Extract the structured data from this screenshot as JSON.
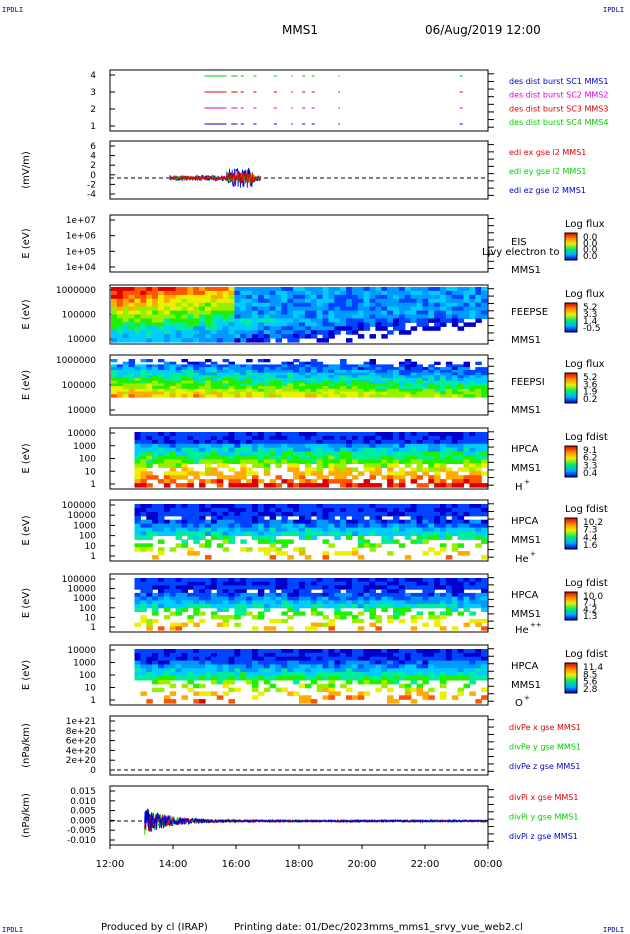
{
  "corner_label": "IPDLI",
  "header": {
    "spacecraft": "MMS1",
    "date": "06/Aug/2019 12:00"
  },
  "footer": {
    "produced_by": "Produced by cl (IRAP)",
    "printing_date": "Printing date: 01/Dec/2023",
    "filename": "mms_mms1_srvy_vue_web2.cl"
  },
  "colors": {
    "red": "#dd0000",
    "green": "#00cc00",
    "blue": "#0000cc",
    "magenta": "#dd00dd"
  },
  "chart_data": {
    "type": "line",
    "x_ticks": [
      "12:00",
      "14:00",
      "16:00",
      "18:00",
      "20:00",
      "22:00",
      "00:00"
    ],
    "x_range_hours": [
      12,
      24
    ],
    "panels": [
      {
        "id": "burst",
        "y_ticks": [
          "4",
          "3",
          "2",
          "1"
        ],
        "legend": [
          {
            "text": "des dist burst SC1 MMS1",
            "color": "#0000cc"
          },
          {
            "text": "des dist burst SC2 MMS2",
            "color": "#dd00dd"
          },
          {
            "text": "des dist burst SC3 MMS3",
            "color": "#dd0000"
          },
          {
            "text": "des dist burst SC4 MMS4",
            "color": "#00cc00"
          }
        ],
        "intervals": [
          [
            15.0,
            15.7
          ],
          [
            15.85,
            16.05
          ],
          [
            16.15,
            16.25
          ],
          [
            16.55,
            16.65
          ],
          [
            17.2,
            17.3
          ],
          [
            17.75,
            17.8
          ],
          [
            18.1,
            18.2
          ],
          [
            18.4,
            18.5
          ],
          [
            19.25,
            19.3
          ],
          [
            23.1,
            23.2
          ]
        ]
      },
      {
        "id": "edi",
        "ylabel": "(mV/m)",
        "y_ticks": [
          "6",
          "4",
          "2",
          "0",
          "-2",
          "-4"
        ],
        "legend": [
          {
            "text": "edi ex gse l2 MMS1",
            "color": "#dd0000"
          },
          {
            "text": "edi ey gse l2 MMS1",
            "color": "#00cc00"
          },
          {
            "text": "edi ez gse l2 MMS1",
            "color": "#0000cc"
          }
        ],
        "active_range_hours": [
          13.9,
          16.8
        ]
      },
      {
        "id": "eis",
        "ylabel": "E (eV)",
        "y_ticks": [
          "1e+07",
          "1e+06",
          "1e+05",
          "1e+04"
        ],
        "instrument": [
          "EIS",
          "MMS1"
        ],
        "overlay_text": "Ljvy electron to",
        "colorbar": {
          "title": "Log flux",
          "ticks": [
            "0.0",
            "0.0",
            "0.0",
            "0.0"
          ]
        }
      },
      {
        "id": "feepse",
        "ylabel": "E (eV)",
        "y_ticks": [
          "1000000",
          "100000",
          "10000"
        ],
        "instrument": [
          "FEEPSE",
          "MMS1"
        ],
        "colorbar": {
          "title": "Log flux",
          "ticks": [
            "5.2",
            "3.3",
            "1.4",
            "-0.5"
          ]
        }
      },
      {
        "id": "feepsi",
        "ylabel": "E (eV)",
        "y_ticks": [
          "1000000",
          "100000",
          "10000"
        ],
        "instrument": [
          "FEEPSI",
          "MMS1"
        ],
        "colorbar": {
          "title": "Log flux",
          "ticks": [
            "5.2",
            "3.6",
            "1.9",
            "0.2"
          ]
        }
      },
      {
        "id": "hpca_h",
        "ylabel": "E (eV)",
        "y_ticks": [
          "10000",
          "1000",
          "100",
          "10",
          "1"
        ],
        "instrument": [
          "HPCA",
          "MMS1"
        ],
        "species": "H",
        "species_sup": "+",
        "colorbar": {
          "title": "Log fdist",
          "ticks": [
            "9.1",
            "6.2",
            "3.3",
            "0.4"
          ]
        }
      },
      {
        "id": "hpca_he1",
        "ylabel": "E (eV)",
        "y_ticks": [
          "100000",
          "10000",
          "1000",
          "100",
          "10",
          "1"
        ],
        "instrument": [
          "HPCA",
          "MMS1"
        ],
        "species": "He",
        "species_sup": "+",
        "colorbar": {
          "title": "Log fdist",
          "ticks": [
            "10.2",
            "7.3",
            "4.4",
            "1.6"
          ]
        }
      },
      {
        "id": "hpca_he2",
        "ylabel": "E (eV)",
        "y_ticks": [
          "100000",
          "10000",
          "1000",
          "100",
          "10",
          "1"
        ],
        "instrument": [
          "HPCA",
          "MMS1"
        ],
        "species": "He",
        "species_sup": "++",
        "colorbar": {
          "title": "Log fdist",
          "ticks": [
            "10.0",
            "7.1",
            "4.2",
            "1.3"
          ]
        }
      },
      {
        "id": "hpca_o",
        "ylabel": "E (eV)",
        "y_ticks": [
          "10000",
          "1000",
          "100",
          "10",
          "1"
        ],
        "instrument": [
          "HPCA",
          "MMS1"
        ],
        "species": "O",
        "species_sup": "+",
        "colorbar": {
          "title": "Log fdist",
          "ticks": [
            "11.4",
            "8.5",
            "5.6",
            "2.8"
          ]
        }
      },
      {
        "id": "divpe",
        "ylabel": "(nPa/km)",
        "y_ticks": [
          "1e+21",
          "8e+20",
          "6e+20",
          "4e+20",
          "2e+20",
          "0"
        ],
        "legend": [
          {
            "text": "divPe x gse MMS1",
            "color": "#dd0000"
          },
          {
            "text": "divPe y gse MMS1",
            "color": "#00cc00"
          },
          {
            "text": "divPe z gse MMS1",
            "color": "#0000cc"
          }
        ]
      },
      {
        "id": "divpi",
        "ylabel": "(nPa/km)",
        "y_ticks": [
          "0.015",
          "0.010",
          "0.005",
          "0.000",
          "-0.005",
          "-0.010"
        ],
        "legend": [
          {
            "text": "divPi x gse MMS1",
            "color": "#dd0000"
          },
          {
            "text": "divPi y gse MMS1",
            "color": "#00cc00"
          },
          {
            "text": "divPi z gse MMS1",
            "color": "#0000cc"
          }
        ],
        "active_range_hours": [
          13.1,
          24
        ]
      }
    ]
  }
}
